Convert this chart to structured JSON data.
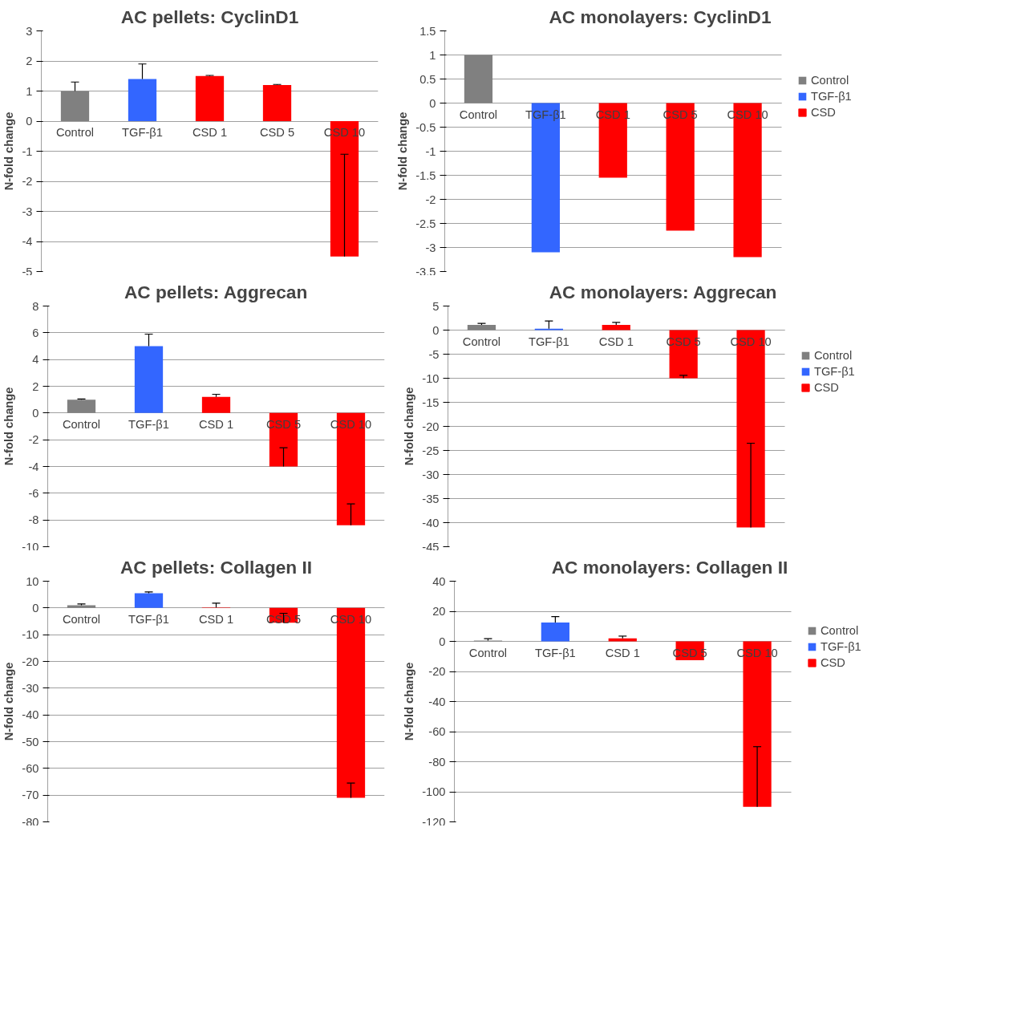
{
  "chart_data": [
    {
      "type": "bar",
      "title": "AC pellets: CyclinD1",
      "ylabel": "N-fold change",
      "categories": [
        "Control",
        "TGF-β1",
        "CSD 1",
        "CSD 5",
        "CSD 10"
      ],
      "ylim": [
        -5,
        3
      ],
      "yticks": [
        -5,
        -4,
        -3,
        -2,
        -1,
        0,
        1,
        2,
        3
      ],
      "grid": "y",
      "legend": false,
      "series": [
        {
          "color": "#808080",
          "values": [
            1.0,
            null,
            null,
            null,
            null
          ],
          "errors": [
            [
              1.0,
              1.3
            ],
            null,
            null,
            null,
            null
          ]
        },
        {
          "color": "#3366ff",
          "values": [
            null,
            1.4,
            null,
            null,
            null
          ],
          "errors": [
            null,
            [
              1.4,
              1.9
            ],
            null,
            null,
            null
          ]
        },
        {
          "color": "#ff0000",
          "values": [
            null,
            null,
            1.5,
            1.2,
            -4.5
          ],
          "errors": [
            null,
            null,
            [
              1.5,
              1.52
            ],
            [
              1.2,
              1.22
            ],
            [
              -4.5,
              -1.1
            ]
          ]
        }
      ]
    },
    {
      "type": "bar",
      "title": "AC monolayers: CyclinD1",
      "ylabel": "N-fold change",
      "categories": [
        "Control",
        "TGF-β1",
        "CSD 1",
        "CSD 5",
        "CSD 10"
      ],
      "ylim": [
        -3.5,
        1.5
      ],
      "yticks": [
        -3.5,
        -3,
        -2.5,
        -2,
        -1.5,
        -1,
        -0.5,
        0,
        0.5,
        1,
        1.5
      ],
      "grid": "y",
      "legend": "right",
      "series": [
        {
          "name": "Control",
          "color": "#808080",
          "values": [
            1.0,
            null,
            null,
            null,
            null
          ]
        },
        {
          "name": "TGF-β1",
          "color": "#3366ff",
          "values": [
            null,
            -3.1,
            null,
            null,
            null
          ]
        },
        {
          "name": "CSD",
          "color": "#ff0000",
          "values": [
            null,
            null,
            -1.55,
            -2.65,
            -3.2
          ]
        }
      ]
    },
    {
      "type": "bar",
      "title": "AC pellets: Aggrecan",
      "ylabel": "N-fold change",
      "categories": [
        "Control",
        "TGF-β1",
        "CSD 1",
        "CSD 5",
        "CSD 10"
      ],
      "ylim": [
        -10,
        8
      ],
      "yticks": [
        -10,
        -8,
        -6,
        -4,
        -2,
        0,
        2,
        4,
        6,
        8
      ],
      "grid": "y",
      "legend": false,
      "series": [
        {
          "color": "#808080",
          "values": [
            1.0,
            null,
            null,
            null,
            null
          ],
          "errors": [
            [
              1.0,
              1.05
            ],
            null,
            null,
            null,
            null
          ]
        },
        {
          "color": "#3366ff",
          "values": [
            null,
            5.0,
            null,
            null,
            null
          ],
          "errors": [
            null,
            [
              5.0,
              5.9
            ],
            null,
            null,
            null
          ]
        },
        {
          "color": "#ff0000",
          "values": [
            null,
            null,
            1.2,
            -4.0,
            -8.4
          ],
          "errors": [
            null,
            null,
            [
              1.2,
              1.4
            ],
            [
              -4.0,
              -2.6
            ],
            [
              -8.4,
              -6.8
            ]
          ]
        }
      ]
    },
    {
      "type": "bar",
      "title": "AC monolayers: Aggrecan",
      "ylabel": "N-fold change",
      "categories": [
        "Control",
        "TGF-β1",
        "CSD 1",
        "CSD 5",
        "CSD 10"
      ],
      "ylim": [
        -45,
        5
      ],
      "yticks": [
        -45,
        -40,
        -35,
        -30,
        -25,
        -20,
        -15,
        -10,
        -5,
        0,
        5
      ],
      "grid": "y",
      "legend": "right",
      "series": [
        {
          "name": "Control",
          "color": "#808080",
          "values": [
            1.1,
            null,
            null,
            null,
            null
          ],
          "errors": [
            [
              1.1,
              1.4
            ],
            null,
            null,
            null,
            null
          ]
        },
        {
          "name": "TGF-β1",
          "color": "#3366ff",
          "values": [
            null,
            0.3,
            null,
            null,
            null
          ],
          "errors": [
            null,
            [
              0.3,
              1.9
            ],
            null,
            null,
            null
          ]
        },
        {
          "name": "CSD",
          "color": "#ff0000",
          "values": [
            null,
            null,
            1.1,
            -10,
            -41
          ],
          "errors": [
            null,
            null,
            [
              1.1,
              1.6
            ],
            [
              -10,
              -9.4
            ],
            [
              -41,
              -23.5
            ]
          ]
        }
      ]
    },
    {
      "type": "bar",
      "title": "AC pellets: Collagen II",
      "ylabel": "N-fold change",
      "categories": [
        "Control",
        "TGF-β1",
        "CSD 1",
        "CSD 5",
        "CSD 10"
      ],
      "ylim": [
        -80,
        10
      ],
      "yticks": [
        -80,
        -70,
        -60,
        -50,
        -40,
        -30,
        -20,
        -10,
        0,
        10
      ],
      "grid": "y",
      "legend": false,
      "series": [
        {
          "color": "#808080",
          "values": [
            1.0,
            null,
            null,
            null,
            null
          ],
          "errors": [
            [
              1.0,
              1.5
            ],
            null,
            null,
            null,
            null
          ]
        },
        {
          "color": "#3366ff",
          "values": [
            null,
            5.5,
            null,
            null,
            null
          ],
          "errors": [
            null,
            [
              5.5,
              6.0
            ],
            null,
            null,
            null
          ]
        },
        {
          "color": "#ff0000",
          "values": [
            null,
            null,
            0.2,
            -5.5,
            -71
          ],
          "errors": [
            null,
            null,
            [
              0.2,
              1.8
            ],
            [
              -5.5,
              -2
            ],
            [
              -71,
              -65.5
            ]
          ]
        }
      ]
    },
    {
      "type": "bar",
      "title": "AC monolayers: Collagen II",
      "ylabel": "N-fold change",
      "categories": [
        "Control",
        "TGF-β1",
        "CSD 1",
        "CSD 5",
        "CSD 10"
      ],
      "ylim": [
        -120,
        40
      ],
      "yticks": [
        -120,
        -100,
        -80,
        -60,
        -40,
        -20,
        0,
        20,
        40
      ],
      "grid": "y",
      "legend": "right",
      "series": [
        {
          "name": "Control",
          "color": "#808080",
          "values": [
            0.5,
            null,
            null,
            null,
            null
          ],
          "errors": [
            [
              0.5,
              1.8
            ],
            null,
            null,
            null,
            null
          ]
        },
        {
          "name": "TGF-β1",
          "color": "#3366ff",
          "values": [
            null,
            12.5,
            null,
            null,
            null
          ],
          "errors": [
            null,
            [
              12.5,
              16.5
            ],
            null,
            null,
            null
          ]
        },
        {
          "name": "CSD",
          "color": "#ff0000",
          "values": [
            null,
            null,
            2,
            -12.5,
            -110
          ],
          "errors": [
            null,
            null,
            [
              2,
              3.5
            ],
            null,
            [
              -110,
              -70
            ]
          ]
        }
      ]
    }
  ]
}
